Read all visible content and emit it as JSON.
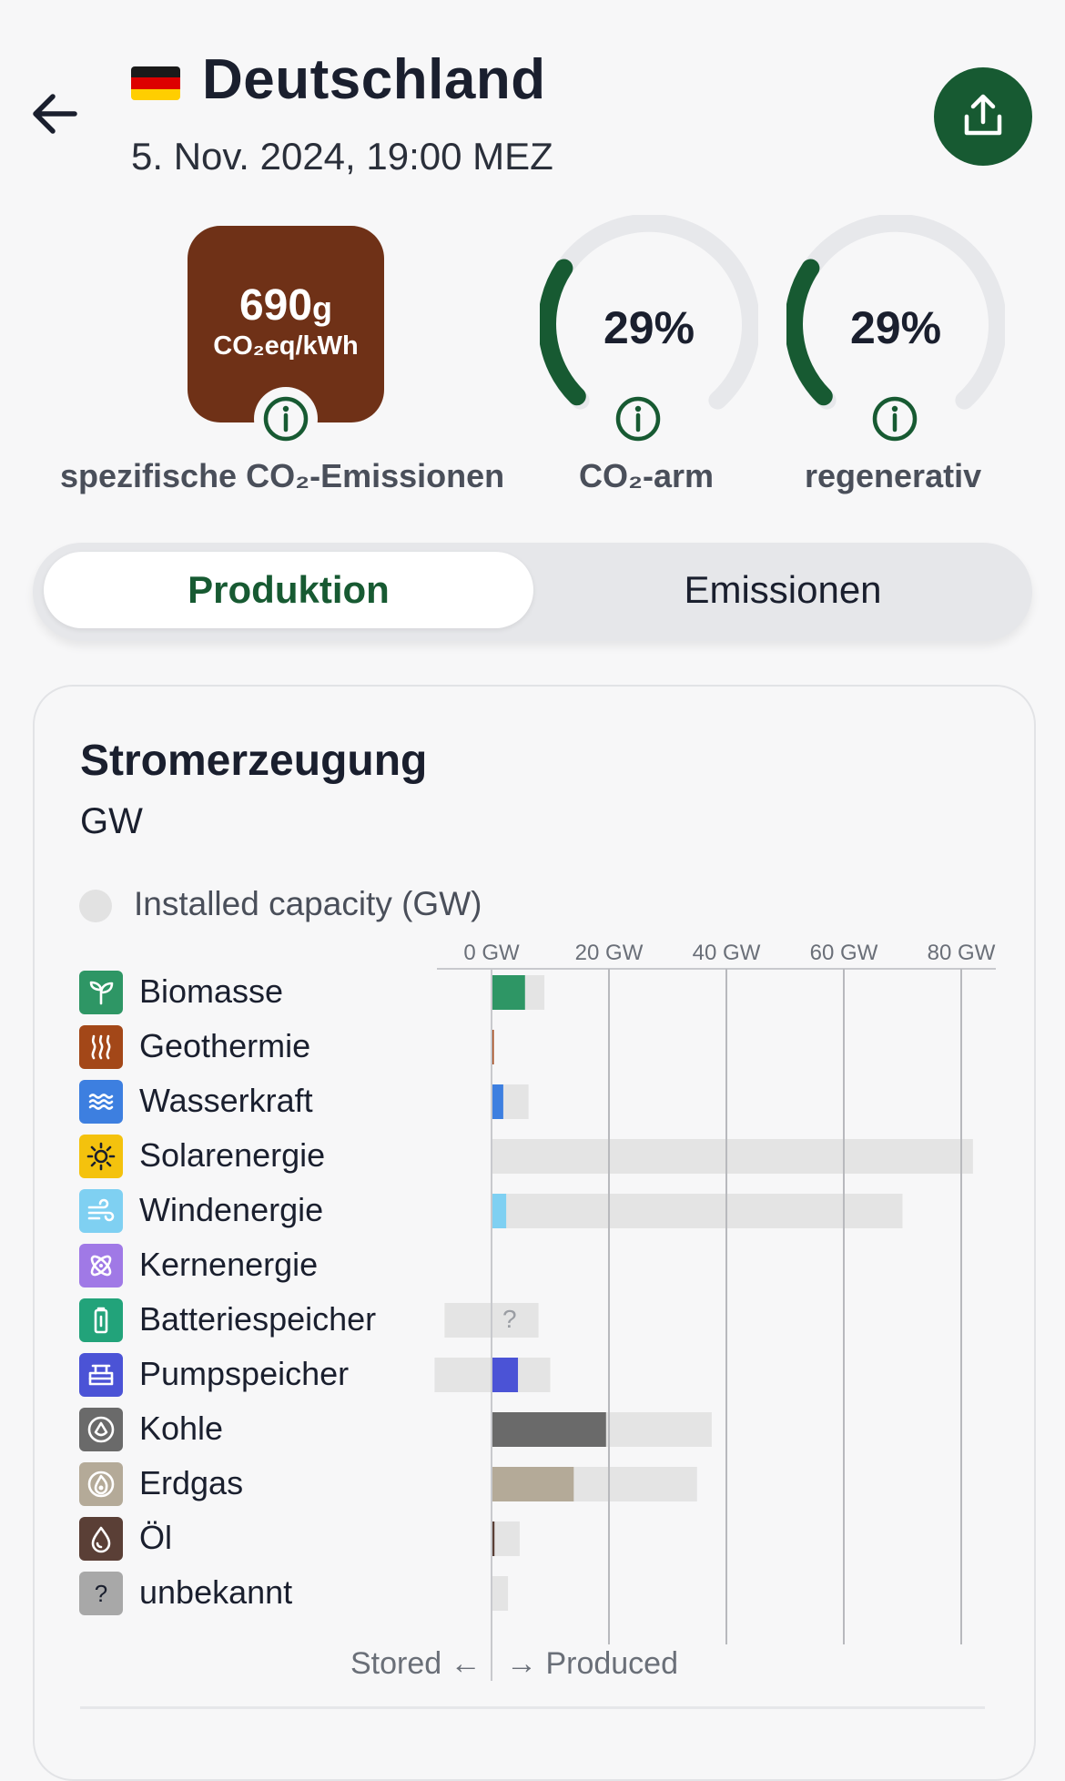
{
  "header": {
    "title": "Deutschland",
    "datetime": "5. Nov. 2024, 19:00 MEZ",
    "flag_colors": [
      "#1a1a1a",
      "#dd0000",
      "#ffce00"
    ],
    "back_icon": "arrow-left-icon",
    "share_icon": "share-icon"
  },
  "metrics": {
    "carbon_intensity": {
      "value": "690",
      "unit_suffix": "g",
      "unit": "CO₂eq/kWh",
      "label": "spezifische CO₂-Emissionen",
      "color": "#6f3117"
    },
    "low_carbon": {
      "value": "29%",
      "fraction": 0.29,
      "label": "CO₂-arm"
    },
    "renewable": {
      "value": "29%",
      "fraction": 0.29,
      "label": "regenerativ"
    },
    "accent": "#175a32"
  },
  "tabs": {
    "production": "Produktion",
    "emissions": "Emissionen",
    "active": "production"
  },
  "chart_card": {
    "title": "Stromerzeugung",
    "unit": "GW",
    "legend_label": "Installed capacity (GW)",
    "footer_stored": "Stored",
    "footer_produced": "Produced",
    "unknown_marker": "?"
  },
  "chart_data": {
    "type": "bar",
    "orientation": "horizontal",
    "xlabel": "",
    "x_ticks": [
      "0 GW",
      "20 GW",
      "40 GW",
      "60 GW",
      "80 GW"
    ],
    "xlim": [
      0,
      82
    ],
    "grid": true,
    "categories": [
      "Biomasse",
      "Geothermie",
      "Wasserkraft",
      "Solarenergie",
      "Windenergie",
      "Kernenergie",
      "Batteriespeicher",
      "Pumpspeicher",
      "Kohle",
      "Erdgas",
      "Öl",
      "unbekannt"
    ],
    "icons": [
      "leaf-icon",
      "geothermal-icon",
      "water-icon",
      "sun-icon",
      "wind-icon",
      "atom-icon",
      "battery-icon",
      "pump-storage-icon",
      "coal-icon",
      "gas-flame-icon",
      "oil-drop-icon",
      "question-icon"
    ],
    "colors": [
      "#2e9665",
      "#a34718",
      "#3d7fe0",
      "#f4c20d",
      "#7fd0f2",
      "#a079e6",
      "#22a37a",
      "#4b53d6",
      "#6a6a6a",
      "#b4aa98",
      "#5a3f36",
      "#a8a8a8"
    ],
    "series": [
      {
        "name": "Produced",
        "values": [
          5.7,
          0.1,
          2.0,
          0.0,
          2.5,
          0.0,
          null,
          4.5,
          19.5,
          14.0,
          0.5,
          0.0
        ]
      },
      {
        "name": "Installed capacity (GW)",
        "values": [
          9.0,
          0.1,
          6.3,
          82.0,
          70.0,
          0.0,
          8.0,
          10.0,
          37.5,
          35.0,
          4.8,
          2.8
        ]
      },
      {
        "name": "Stored",
        "values": [
          0,
          0,
          0,
          0,
          0,
          0,
          8.0,
          9.7,
          0,
          0,
          0,
          0
        ]
      }
    ]
  }
}
